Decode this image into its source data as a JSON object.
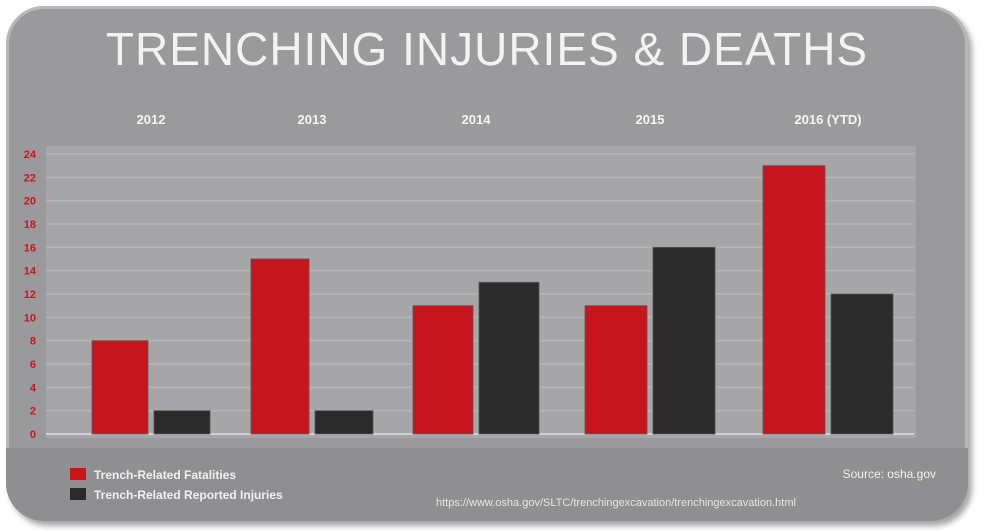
{
  "chart_data": {
    "type": "bar",
    "title": "TRENCHING INJURIES & DEATHS",
    "categories": [
      "2012",
      "2013",
      "2014",
      "2015",
      "2016 (YTD)"
    ],
    "series": [
      {
        "name": "Trench-Related Fatalities",
        "values": [
          8,
          15,
          11,
          11,
          23
        ],
        "color": "#c8161e"
      },
      {
        "name": "Trench-Related Reported Injuries",
        "values": [
          2,
          2,
          13,
          16,
          12
        ],
        "color": "#2b2b2b"
      }
    ],
    "yticks": [
      0,
      2,
      4,
      6,
      8,
      10,
      12,
      14,
      16,
      18,
      20,
      22,
      24
    ],
    "ylim": [
      0,
      24
    ],
    "grid": true,
    "legend_position": "bottom-left",
    "source": "Source: osha.gov",
    "url": "https://www.osha.gov/SLTC/trenchingexcavation/trenchingexcavation.html"
  },
  "colors": {
    "panel": "#9a9a9c",
    "plot": "#a7a7a9",
    "grid": "#b5b5b7",
    "accent": "#c8161e"
  }
}
